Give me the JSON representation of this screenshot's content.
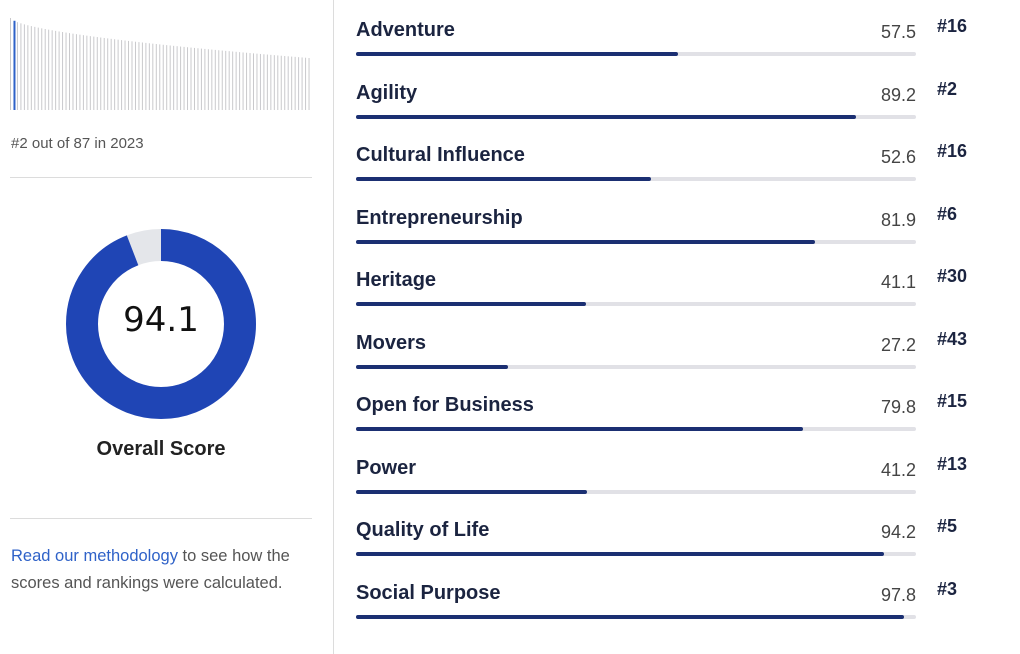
{
  "ranking": {
    "summary": "#2 out of 87 in 2023",
    "total": 87,
    "position": 2
  },
  "overall": {
    "score": "94.1",
    "score_value": 94.1,
    "label": "Overall Score"
  },
  "methodology": {
    "link": "Read our methodology",
    "rest": " to see how the scores and rankings were calculated."
  },
  "colors": {
    "bar_fill": "#1b2f72",
    "bar_track": "#e1e1e6",
    "donut": "#1f45b5",
    "donut_gap": "#e4e6ea",
    "highlight": "#2f62c8"
  },
  "categories": [
    {
      "name": "Adventure",
      "score": "57.5",
      "value": 57.5,
      "rank": "#16"
    },
    {
      "name": "Agility",
      "score": "89.2",
      "value": 89.2,
      "rank": "#2"
    },
    {
      "name": "Cultural Influence",
      "score": "52.6",
      "value": 52.6,
      "rank": "#16"
    },
    {
      "name": "Entrepreneurship",
      "score": "81.9",
      "value": 81.9,
      "rank": "#6"
    },
    {
      "name": "Heritage",
      "score": "41.1",
      "value": 41.1,
      "rank": "#30"
    },
    {
      "name": "Movers",
      "score": "27.2",
      "value": 27.2,
      "rank": "#43"
    },
    {
      "name": "Open for Business",
      "score": "79.8",
      "value": 79.8,
      "rank": "#15"
    },
    {
      "name": "Power",
      "score": "41.2",
      "value": 41.2,
      "rank": "#13"
    },
    {
      "name": "Quality of Life",
      "score": "94.2",
      "value": 94.2,
      "rank": "#5"
    },
    {
      "name": "Social Purpose",
      "score": "97.8",
      "value": 97.8,
      "rank": "#3"
    }
  ]
}
